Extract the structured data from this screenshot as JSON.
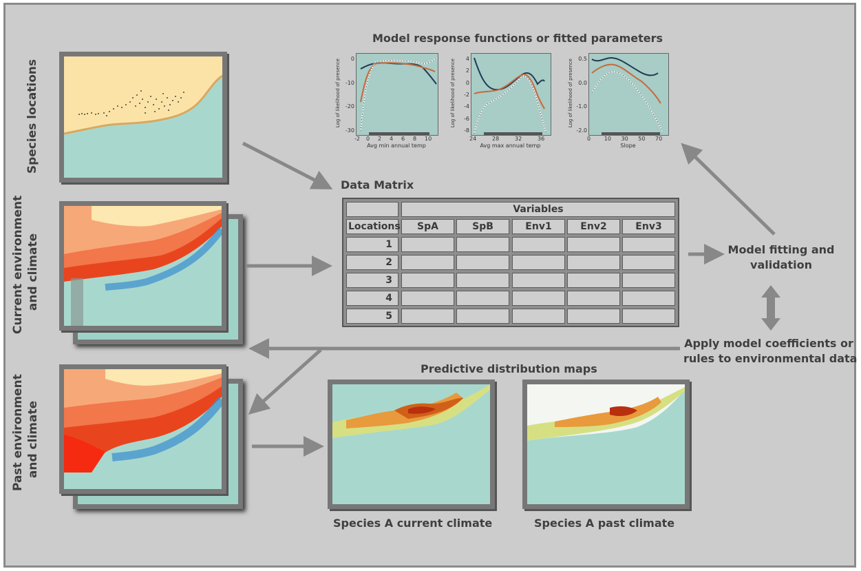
{
  "labels": {
    "species_locations": "Species locations",
    "current_env_line1": "Current environment",
    "current_env_line2": "and climate",
    "past_env_line1": "Past environment",
    "past_env_line2": "and climate",
    "response_title": "Model response functions or fitted parameters",
    "data_matrix": "Data Matrix",
    "model_fitting_line1": "Model fitting and",
    "model_fitting_line2": "validation",
    "apply_line1": "Apply model coefficients or",
    "apply_line2": "rules to environmental data",
    "predictive_maps": "Predictive distribution maps",
    "species_a_current": "Species A current climate",
    "species_a_past": "Species A past climate"
  },
  "table": {
    "variables_header": "Variables",
    "locations_header": "Locations",
    "columns": [
      "SpA",
      "SpB",
      "Env1",
      "Env2",
      "Env3"
    ],
    "rows": [
      "1",
      "2",
      "3",
      "4",
      "5"
    ]
  },
  "plots": [
    {
      "ylabel": "Log of likelihood of presence",
      "xlabel": "Avg min annual temp",
      "xticks": [
        "-2",
        "0",
        "2",
        "4",
        "6",
        "8",
        "10"
      ],
      "yticks": [
        "0",
        "-10",
        "-20",
        "-30"
      ]
    },
    {
      "ylabel": "Log of likelihood of presence",
      "xlabel": "Avg max annual temp",
      "xticks": [
        "24",
        "28",
        "32",
        "36"
      ],
      "yticks": [
        "4",
        "2",
        "0",
        "-2",
        "-4",
        "-6",
        "-8"
      ]
    },
    {
      "ylabel": "Log of likelihood of presence",
      "xlabel": "Slope",
      "xticks": [
        "0",
        "10",
        "30",
        "50",
        "70"
      ],
      "yticks": [
        "0.5",
        "0.0",
        "-1.0",
        "-2.0"
      ]
    }
  ],
  "colors": {
    "background": "#cccccc",
    "arrow": "#888888",
    "sea": "#a8d8cd",
    "land": "#fbe3a8",
    "hot": "#e8451e",
    "plot_bg": "#a8ccc6",
    "curve_dark": "#1f3b55",
    "curve_orange": "#c8683a"
  }
}
